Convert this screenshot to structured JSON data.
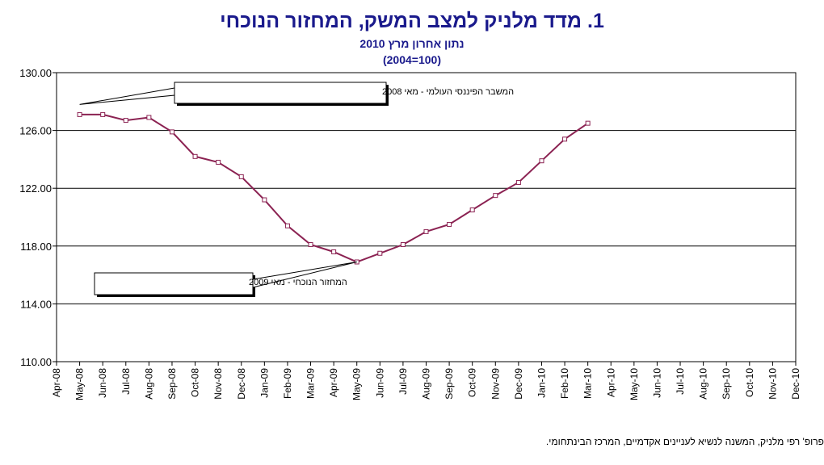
{
  "chart_data": {
    "type": "line",
    "title": "1.  מדד מלניק למצב המשק, המחזור הנוכחי",
    "subtitle": "נתון אחרון מרץ 2010",
    "subtitle2": "(2004=100)",
    "ylim": [
      110,
      130
    ],
    "yticks": [
      "110.00",
      "114.00",
      "118.00",
      "122.00",
      "126.00",
      "130.00"
    ],
    "grid": true,
    "categories": [
      "Apr-08",
      "May-08",
      "Jun-08",
      "Jul-08",
      "Aug-08",
      "Sep-08",
      "Oct-08",
      "Nov-08",
      "Dec-08",
      "Jan-09",
      "Feb-09",
      "Mar-09",
      "Apr-09",
      "May-09",
      "Jun-09",
      "Jul-09",
      "Aug-09",
      "Sep-09",
      "Oct-09",
      "Nov-09",
      "Dec-09",
      "Jan-10",
      "Feb-10",
      "Mar-10",
      "Apr-10",
      "May-10",
      "Jun-10",
      "Jul-10",
      "Aug-10",
      "Sep-10",
      "Oct-10",
      "Nov-10",
      "Dec-10"
    ],
    "series": [
      {
        "color": "#8b2252",
        "values": [
          null,
          127.1,
          127.1,
          126.7,
          126.9,
          125.9,
          124.2,
          123.8,
          122.8,
          121.2,
          119.4,
          118.1,
          117.6,
          116.9,
          117.5,
          118.1,
          119.0,
          119.5,
          120.5,
          121.5,
          122.4,
          123.9,
          125.4,
          126.5,
          null,
          null,
          null,
          null,
          null,
          null,
          null,
          null,
          null
        ]
      }
    ],
    "annotations": [
      {
        "text": "המשבר הפיננסי העולמי  - מאי 2008",
        "category": "May-08",
        "value": 127.8
      },
      {
        "text": "המחזור הנוכחי - מאי 2009",
        "category": "May-09",
        "value": 116.9
      }
    ]
  },
  "footer": "פרופ' רפי מלניק, המשנה לנשיא לעניינים אקדמיים, המרכז הבינתחומי."
}
